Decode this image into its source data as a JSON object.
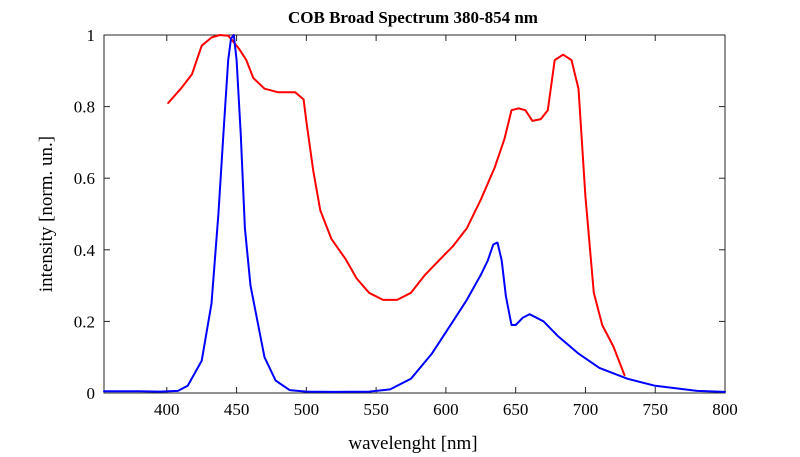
{
  "chart_data": {
    "type": "line",
    "title": "COB Broad Spectrum 380-854 nm",
    "xlabel": "wavelenght [nm]",
    "ylabel": "intensity [norm. un.]",
    "xlim": [
      355,
      800
    ],
    "ylim": [
      0,
      1
    ],
    "xticks": [
      400,
      450,
      500,
      550,
      600,
      650,
      700,
      750,
      800
    ],
    "yticks": [
      0,
      0.2,
      0.4,
      0.6,
      0.8,
      1
    ],
    "ytick_labels": [
      "0",
      "0.2",
      "0.4",
      "0.6",
      "0.8",
      "1"
    ],
    "grid": false,
    "series": [
      {
        "color": "#ff0000",
        "x": [
          401,
          410,
          418,
          425,
          432,
          438,
          444,
          448,
          452,
          457,
          462,
          470,
          480,
          492,
          498,
          500,
          505,
          510,
          518,
          528,
          536,
          545,
          555,
          565,
          575,
          585,
          595,
          605,
          615,
          625,
          635,
          642,
          647,
          652,
          657,
          662,
          668,
          673,
          678,
          684,
          690,
          695,
          700,
          706,
          712,
          720,
          728
        ],
        "y": [
          0.81,
          0.85,
          0.89,
          0.97,
          0.993,
          1.0,
          0.998,
          0.98,
          0.96,
          0.93,
          0.88,
          0.85,
          0.84,
          0.84,
          0.82,
          0.76,
          0.62,
          0.51,
          0.43,
          0.375,
          0.32,
          0.28,
          0.26,
          0.26,
          0.28,
          0.33,
          0.37,
          0.41,
          0.46,
          0.54,
          0.63,
          0.71,
          0.79,
          0.795,
          0.79,
          0.76,
          0.765,
          0.79,
          0.93,
          0.945,
          0.93,
          0.85,
          0.55,
          0.28,
          0.19,
          0.13,
          0.05
        ]
      },
      {
        "color": "#0000ff",
        "x": [
          355,
          380,
          395,
          408,
          415,
          425,
          432,
          437,
          441,
          444,
          446,
          448,
          450,
          453,
          456,
          460,
          465,
          470,
          478,
          488,
          500,
          520,
          545,
          560,
          575,
          590,
          605,
          615,
          625,
          630,
          634,
          637,
          640,
          643,
          647,
          650,
          655,
          660,
          670,
          680,
          695,
          710,
          730,
          750,
          780,
          800
        ],
        "y": [
          0.005,
          0.005,
          0.004,
          0.006,
          0.02,
          0.09,
          0.25,
          0.5,
          0.75,
          0.93,
          0.99,
          1.0,
          0.93,
          0.72,
          0.46,
          0.3,
          0.2,
          0.1,
          0.035,
          0.008,
          0.004,
          0.003,
          0.004,
          0.01,
          0.04,
          0.11,
          0.2,
          0.26,
          0.33,
          0.37,
          0.415,
          0.42,
          0.37,
          0.27,
          0.19,
          0.19,
          0.21,
          0.22,
          0.2,
          0.16,
          0.11,
          0.07,
          0.04,
          0.02,
          0.006,
          0.003
        ]
      }
    ]
  }
}
